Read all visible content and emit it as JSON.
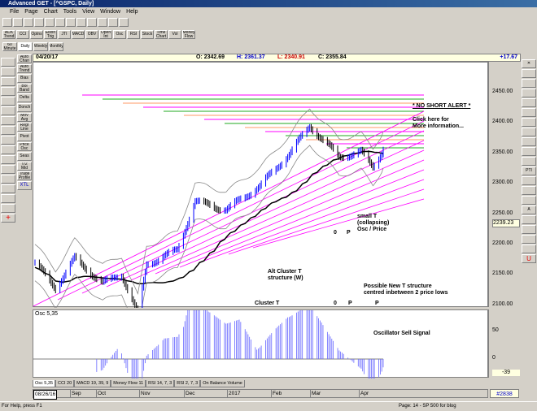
{
  "window": {
    "title": "Advanced GET - [^GSPC, Daily]"
  },
  "menu": [
    "File",
    "Page",
    "Chart",
    "Tools",
    "View",
    "Window",
    "Help"
  ],
  "toolbar_studies": [
    "ADX Trend",
    "CCI",
    "Optns",
    "Ellion Trig",
    "JTI",
    "MACD",
    "OBV",
    "Open Int",
    "Osc",
    "RSI",
    "Stock",
    "Time Chart",
    "Vol",
    "Money Flow"
  ],
  "toolbar_periods": [
    "60 Minute",
    "Daily",
    "Weekly",
    "Monthly"
  ],
  "left_tools": [
    "Auto Chan",
    "Auto Trend",
    "Bias",
    "Bol Band",
    "Delta",
    "Donch",
    "Mov Avg",
    "Regr Line",
    "Pivot",
    "Price Osc",
    "Seas",
    "T/2 Mid",
    "Trade Profile",
    "XTL"
  ],
  "header": {
    "date": "04/20/17",
    "open": "O: 2342.69",
    "high": "H: 2361.37",
    "low": "L: 2340.91",
    "close": "C: 2355.84",
    "change": "+17.67"
  },
  "price_axis": {
    "ticks": [
      "2450.00",
      "2400.00",
      "2350.00",
      "2300.00",
      "2250.00",
      "2200.00",
      "2150.00",
      "2100.00"
    ],
    "current": "2239.23"
  },
  "osc_axis": {
    "ticks": [
      "50",
      "0"
    ],
    "current": "-39"
  },
  "annotations": {
    "no_short": "* NO SHORT ALERT *",
    "click": "Click here for",
    "more": "More information...",
    "small_t": "small T",
    "collapsing": "(collapsing)",
    "osc_price": "Osc / Price",
    "alt1": "Alt Cluster T",
    "alt2": "structure (W)",
    "new1": "Possible New T structure",
    "new2": "centred inbetween 2 price lows",
    "cluster": "Cluster T",
    "sell": "Oscillator Sell Signal",
    "o1": "0",
    "p1": "P",
    "o2": "0",
    "p2": "P",
    "p3": "P"
  },
  "osc_title": "Osc 5,35",
  "tabs": [
    "Osc 5,35",
    "CCI 20",
    "MACD 19, 39, 9",
    "Money Flow 11",
    "RSI 14, 7, 3",
    "RSI 2, 7, 3",
    "On Balance Volume"
  ],
  "datebar": {
    "start": "08/26/16",
    "labels": [
      "Sep",
      "Oct",
      "Nov",
      "Dec",
      "2017",
      "Feb",
      "Mar",
      "Apr"
    ],
    "bar": "#2838"
  },
  "status": {
    "help": "For Help, press F1",
    "page": "Page: 14 - SP 500 for blog"
  },
  "chart_data": {
    "type": "candlestick",
    "symbol": "^GSPC",
    "ylim": [
      2100,
      2480
    ],
    "key_closes": [
      [
        "2016-08-26",
        2170
      ],
      [
        "2016-09-09",
        2128
      ],
      [
        "2016-09-22",
        2177
      ],
      [
        "2016-10-11",
        2136
      ],
      [
        "2016-10-24",
        2151
      ],
      [
        "2016-11-04",
        2085
      ],
      [
        "2016-11-10",
        2167
      ],
      [
        "2016-12-01",
        2191
      ],
      [
        "2016-12-13",
        2271
      ],
      [
        "2017-01-03",
        2257
      ],
      [
        "2017-01-26",
        2296
      ],
      [
        "2017-02-15",
        2349
      ],
      [
        "2017-03-01",
        2395
      ],
      [
        "2017-03-21",
        2344
      ],
      [
        "2017-04-05",
        2352
      ],
      [
        "2017-04-13",
        2328
      ],
      [
        "2017-04-20",
        2355.84
      ]
    ]
  }
}
